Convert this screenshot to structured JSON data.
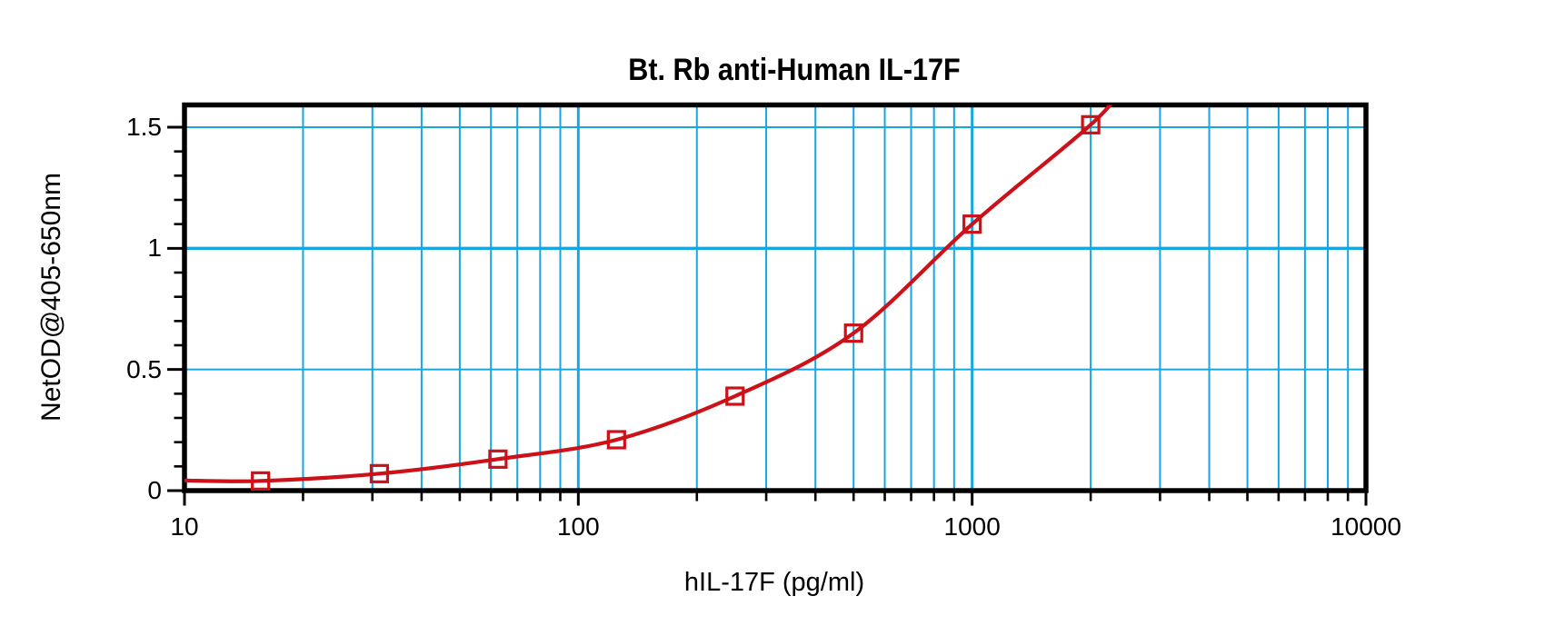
{
  "chart_data": {
    "type": "scatter",
    "title": "Bt. Rb anti-Human IL-17F",
    "xlabel": "hIL-17F (pg/ml)",
    "ylabel": "NetOD@405-650nm",
    "x_scale": "log",
    "y_scale": "linear",
    "x_range": [
      10,
      10000
    ],
    "y_range": [
      0,
      1.6
    ],
    "x_major_ticks": [
      10,
      100,
      1000,
      10000
    ],
    "x_tick_labels": [
      "10",
      "100",
      "1000",
      "10000"
    ],
    "y_major_ticks": [
      0,
      0.5,
      1,
      1.5
    ],
    "y_tick_labels": [
      "0",
      "0.5",
      "1",
      "1.5"
    ],
    "y_minor_tick_step": 0.1,
    "grid": true,
    "legend": "none",
    "series": [
      {
        "name": "standard-curve",
        "marker": "open-square",
        "line": "4PL-fit-curve",
        "color": "#CC1118",
        "points": [
          {
            "x": 15.6,
            "y": 0.04
          },
          {
            "x": 31.25,
            "y": 0.07
          },
          {
            "x": 62.5,
            "y": 0.13
          },
          {
            "x": 125,
            "y": 0.21
          },
          {
            "x": 250,
            "y": 0.39
          },
          {
            "x": 500,
            "y": 0.65
          },
          {
            "x": 1000,
            "y": 1.1
          },
          {
            "x": 2000,
            "y": 1.51
          }
        ]
      }
    ],
    "colors": {
      "grid": "#16A7E0",
      "curve": "#CC1118",
      "axis": "#000000",
      "text": "#000000",
      "background": "#FFFFFF"
    }
  }
}
